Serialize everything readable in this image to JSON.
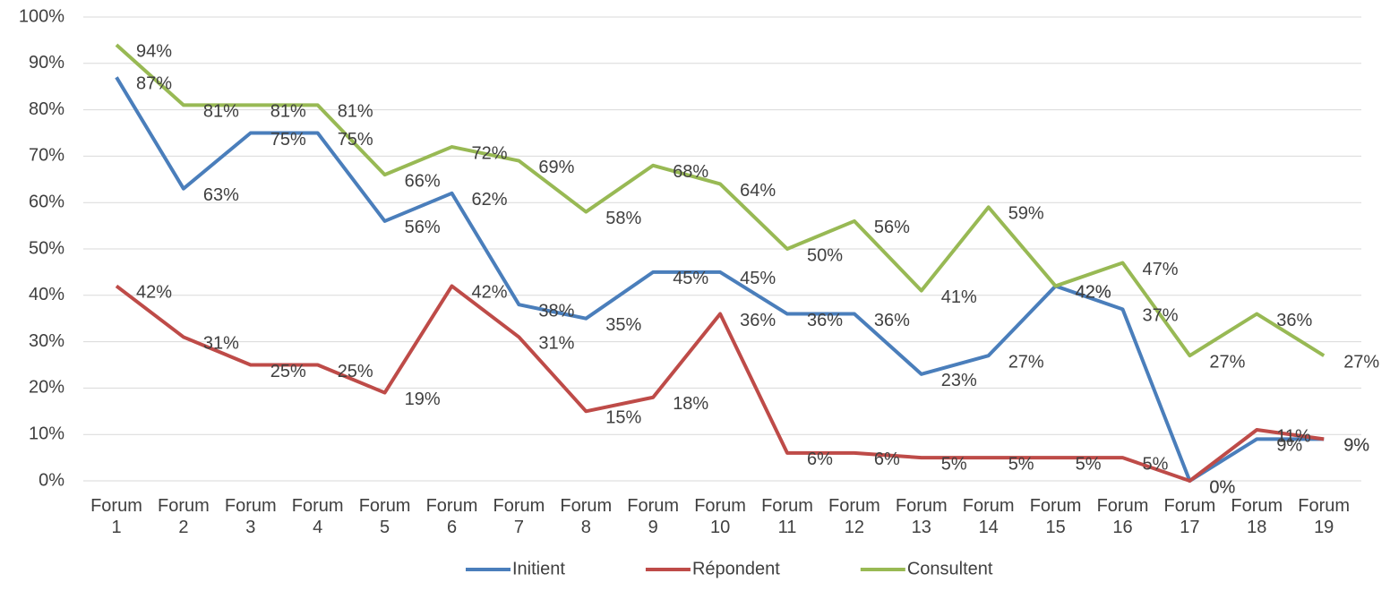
{
  "chart_data": {
    "type": "line",
    "categories": [
      "Forum 1",
      "Forum 2",
      "Forum 3",
      "Forum 4",
      "Forum 5",
      "Forum 6",
      "Forum 7",
      "Forum 8",
      "Forum 9",
      "Forum 10",
      "Forum 11",
      "Forum 12",
      "Forum 13",
      "Forum 14",
      "Forum 15",
      "Forum 16",
      "Forum 17",
      "Forum 18",
      "Forum 19"
    ],
    "series": [
      {
        "name": "Initient",
        "color": "#4a7ebb",
        "values": [
          87,
          63,
          75,
          75,
          56,
          62,
          38,
          35,
          45,
          45,
          36,
          36,
          23,
          27,
          42,
          37,
          0,
          9,
          9
        ],
        "value_labels": [
          "87%",
          "63%",
          "75%",
          "75%",
          "56%",
          "62%",
          "38%",
          "35%",
          "45%",
          "45%",
          "36%",
          "36%",
          "23%",
          "27%",
          "42%",
          "37%",
          "0%",
          "9%",
          "9%"
        ]
      },
      {
        "name": "Répondent",
        "color": "#be4b48",
        "values": [
          42,
          31,
          25,
          25,
          19,
          42,
          31,
          15,
          18,
          36,
          6,
          6,
          5,
          5,
          5,
          5,
          0,
          11,
          9
        ],
        "value_labels": [
          "42%",
          "31%",
          "25%",
          "25%",
          "19%",
          "42%",
          "31%",
          "15%",
          "18%",
          "36%",
          "6%",
          "6%",
          "5%",
          "5%",
          "5%",
          "5%",
          "0%",
          "11%",
          "9%"
        ]
      },
      {
        "name": "Consultent",
        "color": "#98b954",
        "values": [
          94,
          81,
          81,
          81,
          66,
          72,
          69,
          58,
          68,
          64,
          50,
          56,
          41,
          59,
          42,
          47,
          27,
          36,
          27
        ],
        "value_labels": [
          "94%",
          "81%",
          "81%",
          "81%",
          "66%",
          "72%",
          "69%",
          "58%",
          "68%",
          "64%",
          "50%",
          "56%",
          "41%",
          "59%",
          "42%",
          "47%",
          "27%",
          "36%",
          "27%"
        ]
      }
    ],
    "ylim": [
      0,
      100
    ],
    "yticks": [
      {
        "value": 0,
        "label": "0%"
      },
      {
        "value": 10,
        "label": "10%"
      },
      {
        "value": 20,
        "label": "20%"
      },
      {
        "value": 30,
        "label": "30%"
      },
      {
        "value": 40,
        "label": "40%"
      },
      {
        "value": 50,
        "label": "50%"
      },
      {
        "value": 60,
        "label": "60%"
      },
      {
        "value": 70,
        "label": "70%"
      },
      {
        "value": 80,
        "label": "80%"
      },
      {
        "value": 90,
        "label": "90%"
      },
      {
        "value": 100,
        "label": "100%"
      }
    ],
    "grid": true,
    "legend": "bottom"
  }
}
